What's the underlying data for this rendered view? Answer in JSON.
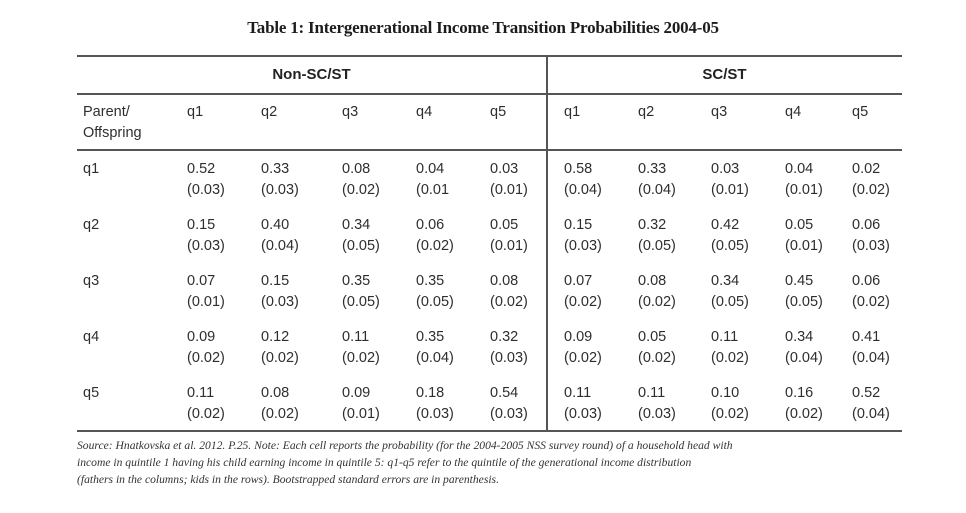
{
  "title": "Table 1: Intergenerational Income Transition Probabilities 2004-05",
  "groups": [
    "Non-SC/ST",
    "SC/ST"
  ],
  "row_header_label": [
    "Parent/",
    "Offspring"
  ],
  "column_headers": [
    "q1",
    "q2",
    "q3",
    "q4",
    "q5"
  ],
  "rows": [
    {
      "label": "q1",
      "non_scst": {
        "values": [
          "0.52",
          "0.33",
          "0.08",
          "0.04",
          "0.03"
        ],
        "se": [
          "(0.03)",
          "(0.03)",
          "(0.02)",
          "(0.01",
          "(0.01)"
        ]
      },
      "scst": {
        "values": [
          "0.58",
          "0.33",
          "0.03",
          "0.04",
          "0.02"
        ],
        "se": [
          "(0.04)",
          "(0.04)",
          "(0.01)",
          "(0.01)",
          "(0.02)"
        ]
      }
    },
    {
      "label": "q2",
      "non_scst": {
        "values": [
          "0.15",
          "0.40",
          "0.34",
          "0.06",
          "0.05"
        ],
        "se": [
          "(0.03)",
          "(0.04)",
          "(0.05)",
          "(0.02)",
          "(0.01)"
        ]
      },
      "scst": {
        "values": [
          "0.15",
          "0.32",
          "0.42",
          "0.05",
          "0.06"
        ],
        "se": [
          "(0.03)",
          "(0.05)",
          "(0.05)",
          "(0.01)",
          "(0.03)"
        ]
      }
    },
    {
      "label": "q3",
      "non_scst": {
        "values": [
          "0.07",
          "0.15",
          "0.35",
          "0.35",
          "0.08"
        ],
        "se": [
          "(0.01)",
          "(0.03)",
          "(0.05)",
          "(0.05)",
          "(0.02)"
        ]
      },
      "scst": {
        "values": [
          "0.07",
          "0.08",
          "0.34",
          "0.45",
          "0.06"
        ],
        "se": [
          "(0.02)",
          "(0.02)",
          "(0.05)",
          "(0.05)",
          "(0.02)"
        ]
      }
    },
    {
      "label": "q4",
      "non_scst": {
        "values": [
          "0.09",
          "0.12",
          "0.11",
          "0.35",
          "0.32"
        ],
        "se": [
          "(0.02)",
          "(0.02)",
          "(0.02)",
          "(0.04)",
          "(0.03)"
        ]
      },
      "scst": {
        "values": [
          "0.09",
          "0.05",
          "0.11",
          "0.34",
          "0.41"
        ],
        "se": [
          "(0.02)",
          "(0.02)",
          "(0.02)",
          "(0.04)",
          "(0.04)"
        ]
      }
    },
    {
      "label": "q5",
      "non_scst": {
        "values": [
          "0.11",
          "0.08",
          "0.09",
          "0.18",
          "0.54"
        ],
        "se": [
          "(0.02)",
          "(0.02)",
          "(0.01)",
          "(0.03)",
          "(0.03)"
        ]
      },
      "scst": {
        "values": [
          "0.11",
          "0.11",
          "0.10",
          "0.16",
          "0.52"
        ],
        "se": [
          "(0.03)",
          "(0.03)",
          "(0.02)",
          "(0.02)",
          "(0.04)"
        ]
      }
    }
  ],
  "note_lines": [
    "Source: Hnatkovska et al. 2012. P.25. Note: Each cell reports the probability (for the 2004-2005 NSS survey round) of a household head with",
    "income in quintile 1 having his child earning income in quintile 5: q1-q5 refer to the quintile of the generational income distribution",
    "(fathers in the columns; kids in the rows). Bootstrapped standard errors are in parenthesis."
  ],
  "chart_data": {
    "type": "table",
    "title": "Table 1: Intergenerational Income Transition Probabilities 2004-05",
    "row_labels": [
      "q1",
      "q2",
      "q3",
      "q4",
      "q5"
    ],
    "column_labels": [
      "q1",
      "q2",
      "q3",
      "q4",
      "q5"
    ],
    "series": [
      {
        "name": "Non-SC/ST",
        "values": [
          [
            0.52,
            0.33,
            0.08,
            0.04,
            0.03
          ],
          [
            0.15,
            0.4,
            0.34,
            0.06,
            0.05
          ],
          [
            0.07,
            0.15,
            0.35,
            0.35,
            0.08
          ],
          [
            0.09,
            0.12,
            0.11,
            0.35,
            0.32
          ],
          [
            0.11,
            0.08,
            0.09,
            0.18,
            0.54
          ]
        ],
        "standard_errors": [
          [
            0.03,
            0.03,
            0.02,
            0.01,
            0.01
          ],
          [
            0.03,
            0.04,
            0.05,
            0.02,
            0.01
          ],
          [
            0.01,
            0.03,
            0.05,
            0.05,
            0.02
          ],
          [
            0.02,
            0.02,
            0.02,
            0.04,
            0.03
          ],
          [
            0.02,
            0.02,
            0.01,
            0.03,
            0.03
          ]
        ]
      },
      {
        "name": "SC/ST",
        "values": [
          [
            0.58,
            0.33,
            0.03,
            0.04,
            0.02
          ],
          [
            0.15,
            0.32,
            0.42,
            0.05,
            0.06
          ],
          [
            0.07,
            0.08,
            0.34,
            0.45,
            0.06
          ],
          [
            0.09,
            0.05,
            0.11,
            0.34,
            0.41
          ],
          [
            0.11,
            0.11,
            0.1,
            0.16,
            0.52
          ]
        ],
        "standard_errors": [
          [
            0.04,
            0.04,
            0.01,
            0.01,
            0.02
          ],
          [
            0.03,
            0.05,
            0.05,
            0.01,
            0.03
          ],
          [
            0.02,
            0.02,
            0.05,
            0.05,
            0.02
          ],
          [
            0.02,
            0.02,
            0.02,
            0.04,
            0.04
          ],
          [
            0.03,
            0.03,
            0.02,
            0.02,
            0.04
          ]
        ]
      }
    ]
  }
}
